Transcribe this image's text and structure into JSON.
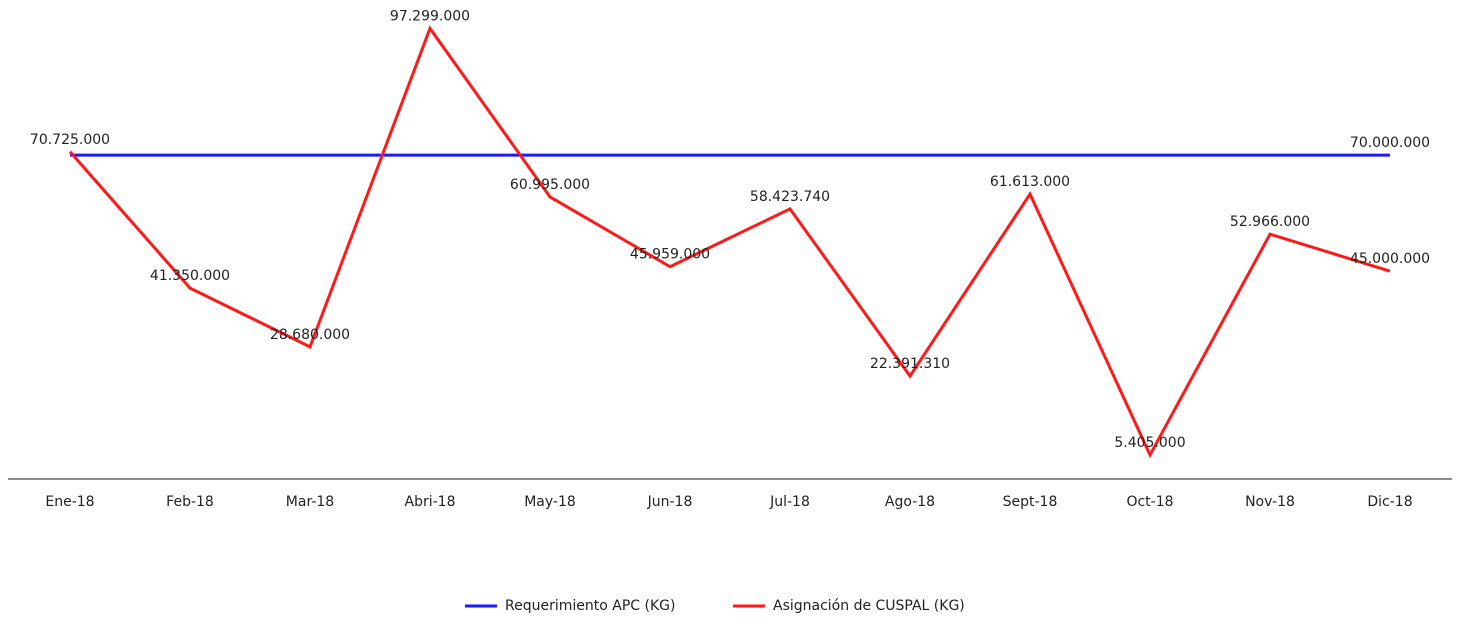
{
  "chart_data": {
    "type": "line",
    "categories": [
      "Ene-18",
      "Feb-18",
      "Mar-18",
      "Abri-18",
      "May-18",
      "Jun-18",
      "Jul-18",
      "Ago-18",
      "Sept-18",
      "Oct-18",
      "Nov-18",
      "Dic-18"
    ],
    "series": [
      {
        "name": "Requerimiento APC (KG)",
        "color": "#1a1aff",
        "values": [
          70000000,
          70000000,
          70000000,
          70000000,
          70000000,
          70000000,
          70000000,
          70000000,
          70000000,
          70000000,
          70000000,
          70000000
        ],
        "value_labels": [
          null,
          null,
          null,
          null,
          null,
          null,
          null,
          null,
          null,
          null,
          null,
          "70.000.000"
        ]
      },
      {
        "name": "Asignación de CUSPAL (KG)",
        "color": "#ff1a1a",
        "values": [
          70725000,
          41350000,
          28680000,
          97299000,
          60995000,
          45959000,
          58423740,
          22391310,
          61613000,
          5405000,
          52966000,
          45000000
        ],
        "value_labels": [
          "70.725.000",
          "41.350.000",
          "28.680.000",
          "97.299.000",
          "60.995.000",
          "45.959.000",
          "58.423.740",
          "22.391.310",
          "61.613.000",
          "5.405.000",
          "52.966.000",
          "45.000.000"
        ]
      }
    ],
    "ylim": [
      0,
      103000000
    ]
  }
}
